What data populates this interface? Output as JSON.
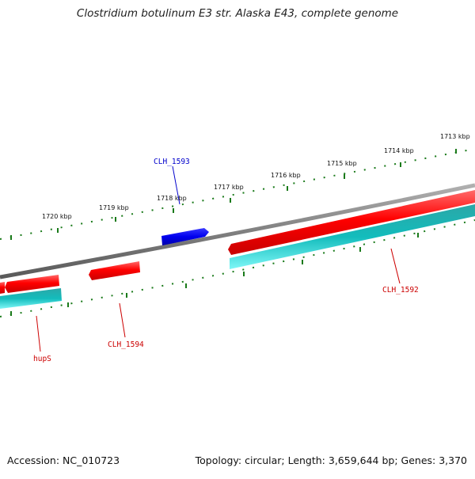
{
  "title": "Clostridium botulinum E3 str. Alaska E43, complete genome",
  "footer": {
    "accession": "Accession: NC_010723",
    "topology": "Topology: circular; Length: 3,659,644 bp; Genes: 3,370"
  },
  "ruler": {
    "ticks": [
      "1713 kbp",
      "1714 kbp",
      "1715 kbp",
      "1716 kbp",
      "1717 kbp",
      "1718 kbp",
      "1719 kbp",
      "1720 kbp"
    ]
  },
  "genes": {
    "clh_1593": "CLH_1593",
    "clh_1592": "CLH_1592",
    "clh_1594": "CLH_1594",
    "hups": "hupS"
  },
  "colors": {
    "forward": "#ff0000",
    "reverse_highlight": "#0000ff",
    "cds": "#00c8c8",
    "backbone": "#808080",
    "ticks": "#1a7a1a",
    "label_red": "#cc0000",
    "label_blue": "#0000cc"
  }
}
